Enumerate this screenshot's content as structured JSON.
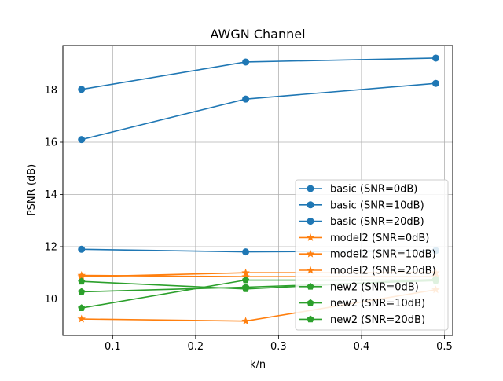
{
  "chart_data": {
    "type": "line",
    "title": "AWGN Channel",
    "xlabel": "k/n",
    "ylabel": "PSNR (dB)",
    "xlim": [
      0.04,
      0.51
    ],
    "ylim": [
      8.6,
      19.7
    ],
    "xticks": [
      0.1,
      0.2,
      0.3,
      0.4,
      0.5
    ],
    "xtick_labels": [
      "0.1",
      "0.2",
      "0.3",
      "0.4",
      "0.5"
    ],
    "yticks": [
      10,
      12,
      14,
      16,
      18
    ],
    "ytick_labels": [
      "10",
      "12",
      "14",
      "16",
      "18"
    ],
    "grid": true,
    "legend_position": "lower-right",
    "x": [
      0.0625,
      0.2604,
      0.4896
    ],
    "series": [
      {
        "name": "basic (SNR=0dB)",
        "values": [
          11.9,
          11.8,
          11.85
        ],
        "color": "#1f77b4",
        "marker": "circle"
      },
      {
        "name": "basic (SNR=10dB)",
        "values": [
          16.1,
          17.65,
          18.25
        ],
        "color": "#1f77b4",
        "marker": "circle"
      },
      {
        "name": "basic (SNR=20dB)",
        "values": [
          18.02,
          19.07,
          19.22
        ],
        "color": "#1f77b4",
        "marker": "circle"
      },
      {
        "name": "model2 (SNR=0dB)",
        "values": [
          9.23,
          9.15,
          10.35
        ],
        "color": "#ff7f0e",
        "marker": "star"
      },
      {
        "name": "model2 (SNR=10dB)",
        "values": [
          10.85,
          11.0,
          11.0
        ],
        "color": "#ff7f0e",
        "marker": "star"
      },
      {
        "name": "model2 (SNR=20dB)",
        "values": [
          10.9,
          10.85,
          10.85
        ],
        "color": "#ff7f0e",
        "marker": "star"
      },
      {
        "name": "new2 (SNR=0dB)",
        "values": [
          9.65,
          10.72,
          10.72
        ],
        "color": "#2ca02c",
        "marker": "pentagon"
      },
      {
        "name": "new2 (SNR=10dB)",
        "values": [
          10.27,
          10.45,
          10.7
        ],
        "color": "#2ca02c",
        "marker": "pentagon"
      },
      {
        "name": "new2 (SNR=20dB)",
        "values": [
          10.67,
          10.38,
          10.75
        ],
        "color": "#2ca02c",
        "marker": "pentagon"
      }
    ]
  }
}
